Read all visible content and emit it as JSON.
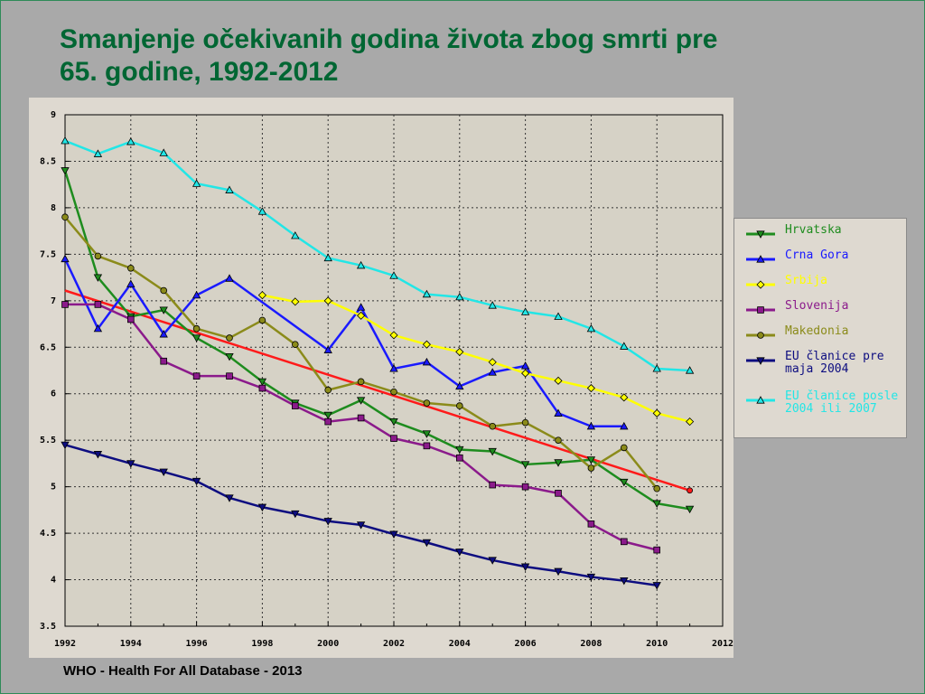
{
  "header": {
    "title_line1": "Smanjenje očekivanih godina života zbog smrti pre",
    "title_line2": "65. godine, 1992-2012"
  },
  "footer": {
    "source": "WHO - Health For All Database - 2013"
  },
  "chart_data": {
    "type": "line",
    "title": "Smanjenje očekivanih godina života zbog smrti pre 65. godine, 1992-2012",
    "xlim": [
      1992,
      2012
    ],
    "ylim": [
      3.5,
      9
    ],
    "x_ticks": [
      1992,
      1994,
      1996,
      1998,
      2000,
      2002,
      2004,
      2006,
      2008,
      2010,
      2012
    ],
    "y_ticks": [
      3.5,
      4,
      4.5,
      5,
      5.5,
      6,
      6.5,
      7,
      7.5,
      8,
      8.5,
      9
    ],
    "grid": true,
    "legend_position": "right",
    "series": [
      {
        "name": "Hrvatska",
        "color": "#1e8c1e",
        "marker": "triangle-down",
        "x": [
          1992,
          1993,
          1994,
          1995,
          1996,
          1997,
          1998,
          1999,
          2000,
          2001,
          2002,
          2003,
          2004,
          2005,
          2006,
          2007,
          2008,
          2009,
          2010,
          2011
        ],
        "y": [
          8.4,
          7.25,
          6.83,
          6.9,
          6.6,
          6.4,
          6.13,
          5.9,
          5.77,
          5.93,
          5.7,
          5.57,
          5.4,
          5.38,
          5.24,
          5.26,
          5.29,
          5.05,
          4.82,
          4.76
        ]
      },
      {
        "name": "Crna Gora",
        "color": "#1a1aff",
        "marker": "triangle-up",
        "x": [
          1992,
          1993,
          1994,
          1995,
          1996,
          1997,
          2000,
          2001,
          2002,
          2003,
          2004,
          2005,
          2006,
          2007,
          2008,
          2009
        ],
        "y": [
          7.45,
          6.7,
          7.18,
          6.64,
          7.06,
          7.24,
          6.47,
          6.93,
          6.27,
          6.34,
          6.08,
          6.23,
          6.3,
          5.79,
          5.65,
          5.65
        ]
      },
      {
        "name": "Srbija",
        "color": "#ffff00",
        "marker": "diamond",
        "x": [
          1998,
          1999,
          2000,
          2001,
          2002,
          2003,
          2004,
          2005,
          2006,
          2007,
          2008,
          2009,
          2010,
          2011
        ],
        "y": [
          7.06,
          6.99,
          7.0,
          6.84,
          6.63,
          6.53,
          6.45,
          6.34,
          6.22,
          6.14,
          6.06,
          5.96,
          5.79,
          5.7
        ]
      },
      {
        "name": "Slovenija",
        "color": "#8b1a8b",
        "marker": "square",
        "x": [
          1992,
          1993,
          1994,
          1995,
          1996,
          1997,
          1998,
          1999,
          2000,
          2001,
          2002,
          2003,
          2004,
          2005,
          2006,
          2007,
          2008,
          2009,
          2010
        ],
        "y": [
          6.96,
          6.96,
          6.8,
          6.35,
          6.19,
          6.19,
          6.06,
          5.87,
          5.7,
          5.74,
          5.52,
          5.44,
          5.31,
          5.02,
          5.0,
          4.93,
          4.6,
          4.41,
          4.32
        ]
      },
      {
        "name": "Makedonia",
        "color": "#8b8b1a",
        "marker": "circle",
        "x": [
          1992,
          1993,
          1994,
          1995,
          1996,
          1997,
          1998,
          1999,
          2000,
          2001,
          2002,
          2003,
          2004,
          2005,
          2006,
          2007,
          2008,
          2009,
          2010
        ],
        "y": [
          7.9,
          7.48,
          7.35,
          7.11,
          6.7,
          6.6,
          6.79,
          6.53,
          6.04,
          6.13,
          6.02,
          5.9,
          5.87,
          5.65,
          5.69,
          5.5,
          5.2,
          5.42,
          4.98
        ]
      },
      {
        "name": "EU članice pre maja 2004",
        "color": "#0d0d80",
        "marker": "triangle-down",
        "x": [
          1992,
          1993,
          1994,
          1995,
          1996,
          1997,
          1998,
          1999,
          2000,
          2001,
          2002,
          2003,
          2004,
          2005,
          2006,
          2007,
          2008,
          2009,
          2010
        ],
        "y": [
          5.45,
          5.35,
          5.25,
          5.16,
          5.06,
          4.88,
          4.78,
          4.71,
          4.63,
          4.59,
          4.49,
          4.4,
          4.3,
          4.21,
          4.14,
          4.09,
          4.03,
          3.99,
          3.94
        ]
      },
      {
        "name": "EU članice posle 2004 ili 2007",
        "color": "#22e6e6",
        "marker": "triangle-up",
        "x": [
          1992,
          1993,
          1994,
          1995,
          1996,
          1997,
          1998,
          1999,
          2000,
          2001,
          2002,
          2003,
          2004,
          2005,
          2006,
          2007,
          2008,
          2009,
          2010,
          2011
        ],
        "y": [
          8.72,
          8.58,
          8.71,
          8.59,
          8.26,
          8.19,
          7.96,
          7.7,
          7.46,
          7.38,
          7.27,
          7.07,
          7.04,
          6.95,
          6.88,
          6.83,
          6.7,
          6.51,
          6.27,
          6.25
        ]
      }
    ],
    "trendline": {
      "color": "#ff1a1a",
      "x": [
        1992,
        2011
      ],
      "y": [
        7.11,
        4.96
      ]
    }
  }
}
